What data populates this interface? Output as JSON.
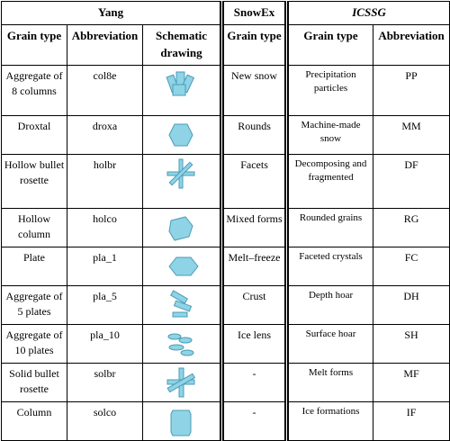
{
  "header": {
    "groups": [
      "Yang",
      "SnowEx",
      "ICSSG"
    ],
    "columns": [
      "Grain type",
      "Abbreviation",
      "Schematic drawing",
      "Grain type",
      "Grain type",
      "Abbreviation"
    ]
  },
  "table": {
    "rows": [
      [
        "Aggregate of 8 columns",
        "col8e",
        "New snow",
        "Precipitation particles",
        "PP"
      ],
      [
        "Droxtal",
        "droxa",
        "Rounds",
        "Machine-made snow",
        "MM"
      ],
      [
        "Hollow bullet rosette",
        "holbr",
        "Facets",
        "Decomposing and fragmented",
        "DF"
      ],
      [
        "Hollow column",
        "holco",
        "Mixed forms",
        "Rounded grains",
        "RG"
      ],
      [
        "Plate",
        "pla_1",
        "Melt–freeze",
        "Faceted crystals",
        "FC"
      ],
      [
        "Aggregate of 5 plates",
        "pla_5",
        "Crust",
        "Depth hoar",
        "DH"
      ],
      [
        "Aggregate of 10 plates",
        "pla_10",
        "Ice lens",
        "Surface hoar",
        "SH"
      ],
      [
        "Solid bullet rosette",
        "solbr",
        "-",
        "Melt forms",
        "MF"
      ],
      [
        "Column",
        "solco",
        "-",
        "Ice formations",
        "IF"
      ]
    ]
  }
}
